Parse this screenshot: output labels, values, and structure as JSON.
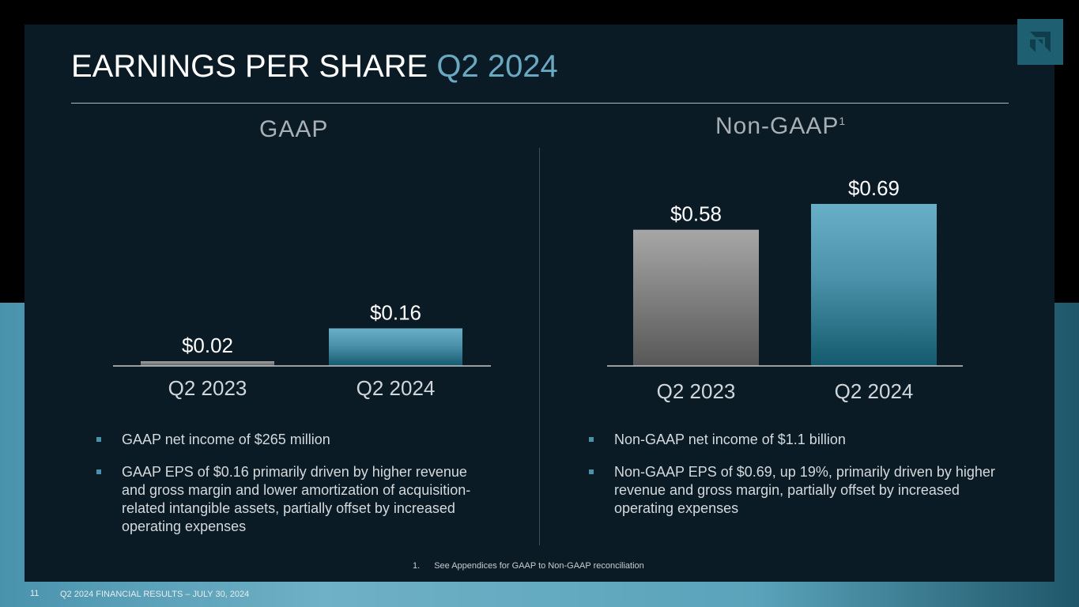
{
  "title": {
    "main": "EARNINGS PER SHARE",
    "accent": "Q2 2024"
  },
  "colors": {
    "accent": "#6aa9c2",
    "panel": "#0b1b25",
    "bar_gray_top": "#a7a7a7",
    "bar_gray_bottom": "#575757",
    "bar_teal_top": "#68afc7",
    "bar_teal_bottom": "#145a6e"
  },
  "chart_data": [
    {
      "type": "bar",
      "title": "GAAP",
      "categories": [
        "Q2 2023",
        "Q2 2024"
      ],
      "values": [
        0.02,
        0.16
      ],
      "data_labels": [
        "$0.02",
        "$0.16"
      ],
      "xlabel": "",
      "ylabel": "",
      "ylim": [
        0,
        0.69
      ],
      "grid": false,
      "legend": "none"
    },
    {
      "type": "bar",
      "title": "Non-GAAP",
      "title_sup": "1",
      "categories": [
        "Q2 2023",
        "Q2 2024"
      ],
      "values": [
        0.58,
        0.69
      ],
      "data_labels": [
        "$0.58",
        "$0.69"
      ],
      "xlabel": "",
      "ylabel": "",
      "ylim": [
        0,
        0.69
      ],
      "grid": false,
      "legend": "none"
    }
  ],
  "gaap_bullets": [
    "GAAP net income of $265 million",
    "GAAP EPS of $0.16 primarily driven by higher revenue and gross margin and lower amortization of acquisition-related intangible assets, partially offset by increased operating expenses"
  ],
  "nongaap_bullets": [
    "Non-GAAP net income of $1.1 billion",
    "Non-GAAP EPS of $0.69, up 19%, primarily driven by higher revenue and gross margin, partially offset by increased operating expenses"
  ],
  "footnote": {
    "number": "1.",
    "text": "See Appendices for GAAP to Non-GAAP reconciliation"
  },
  "footer": {
    "page": "11",
    "text": "Q2 2024 FINANCIAL RESULTS – JULY 30, 2024"
  },
  "logo": {
    "icon": "amd-arrow-logo-icon"
  }
}
